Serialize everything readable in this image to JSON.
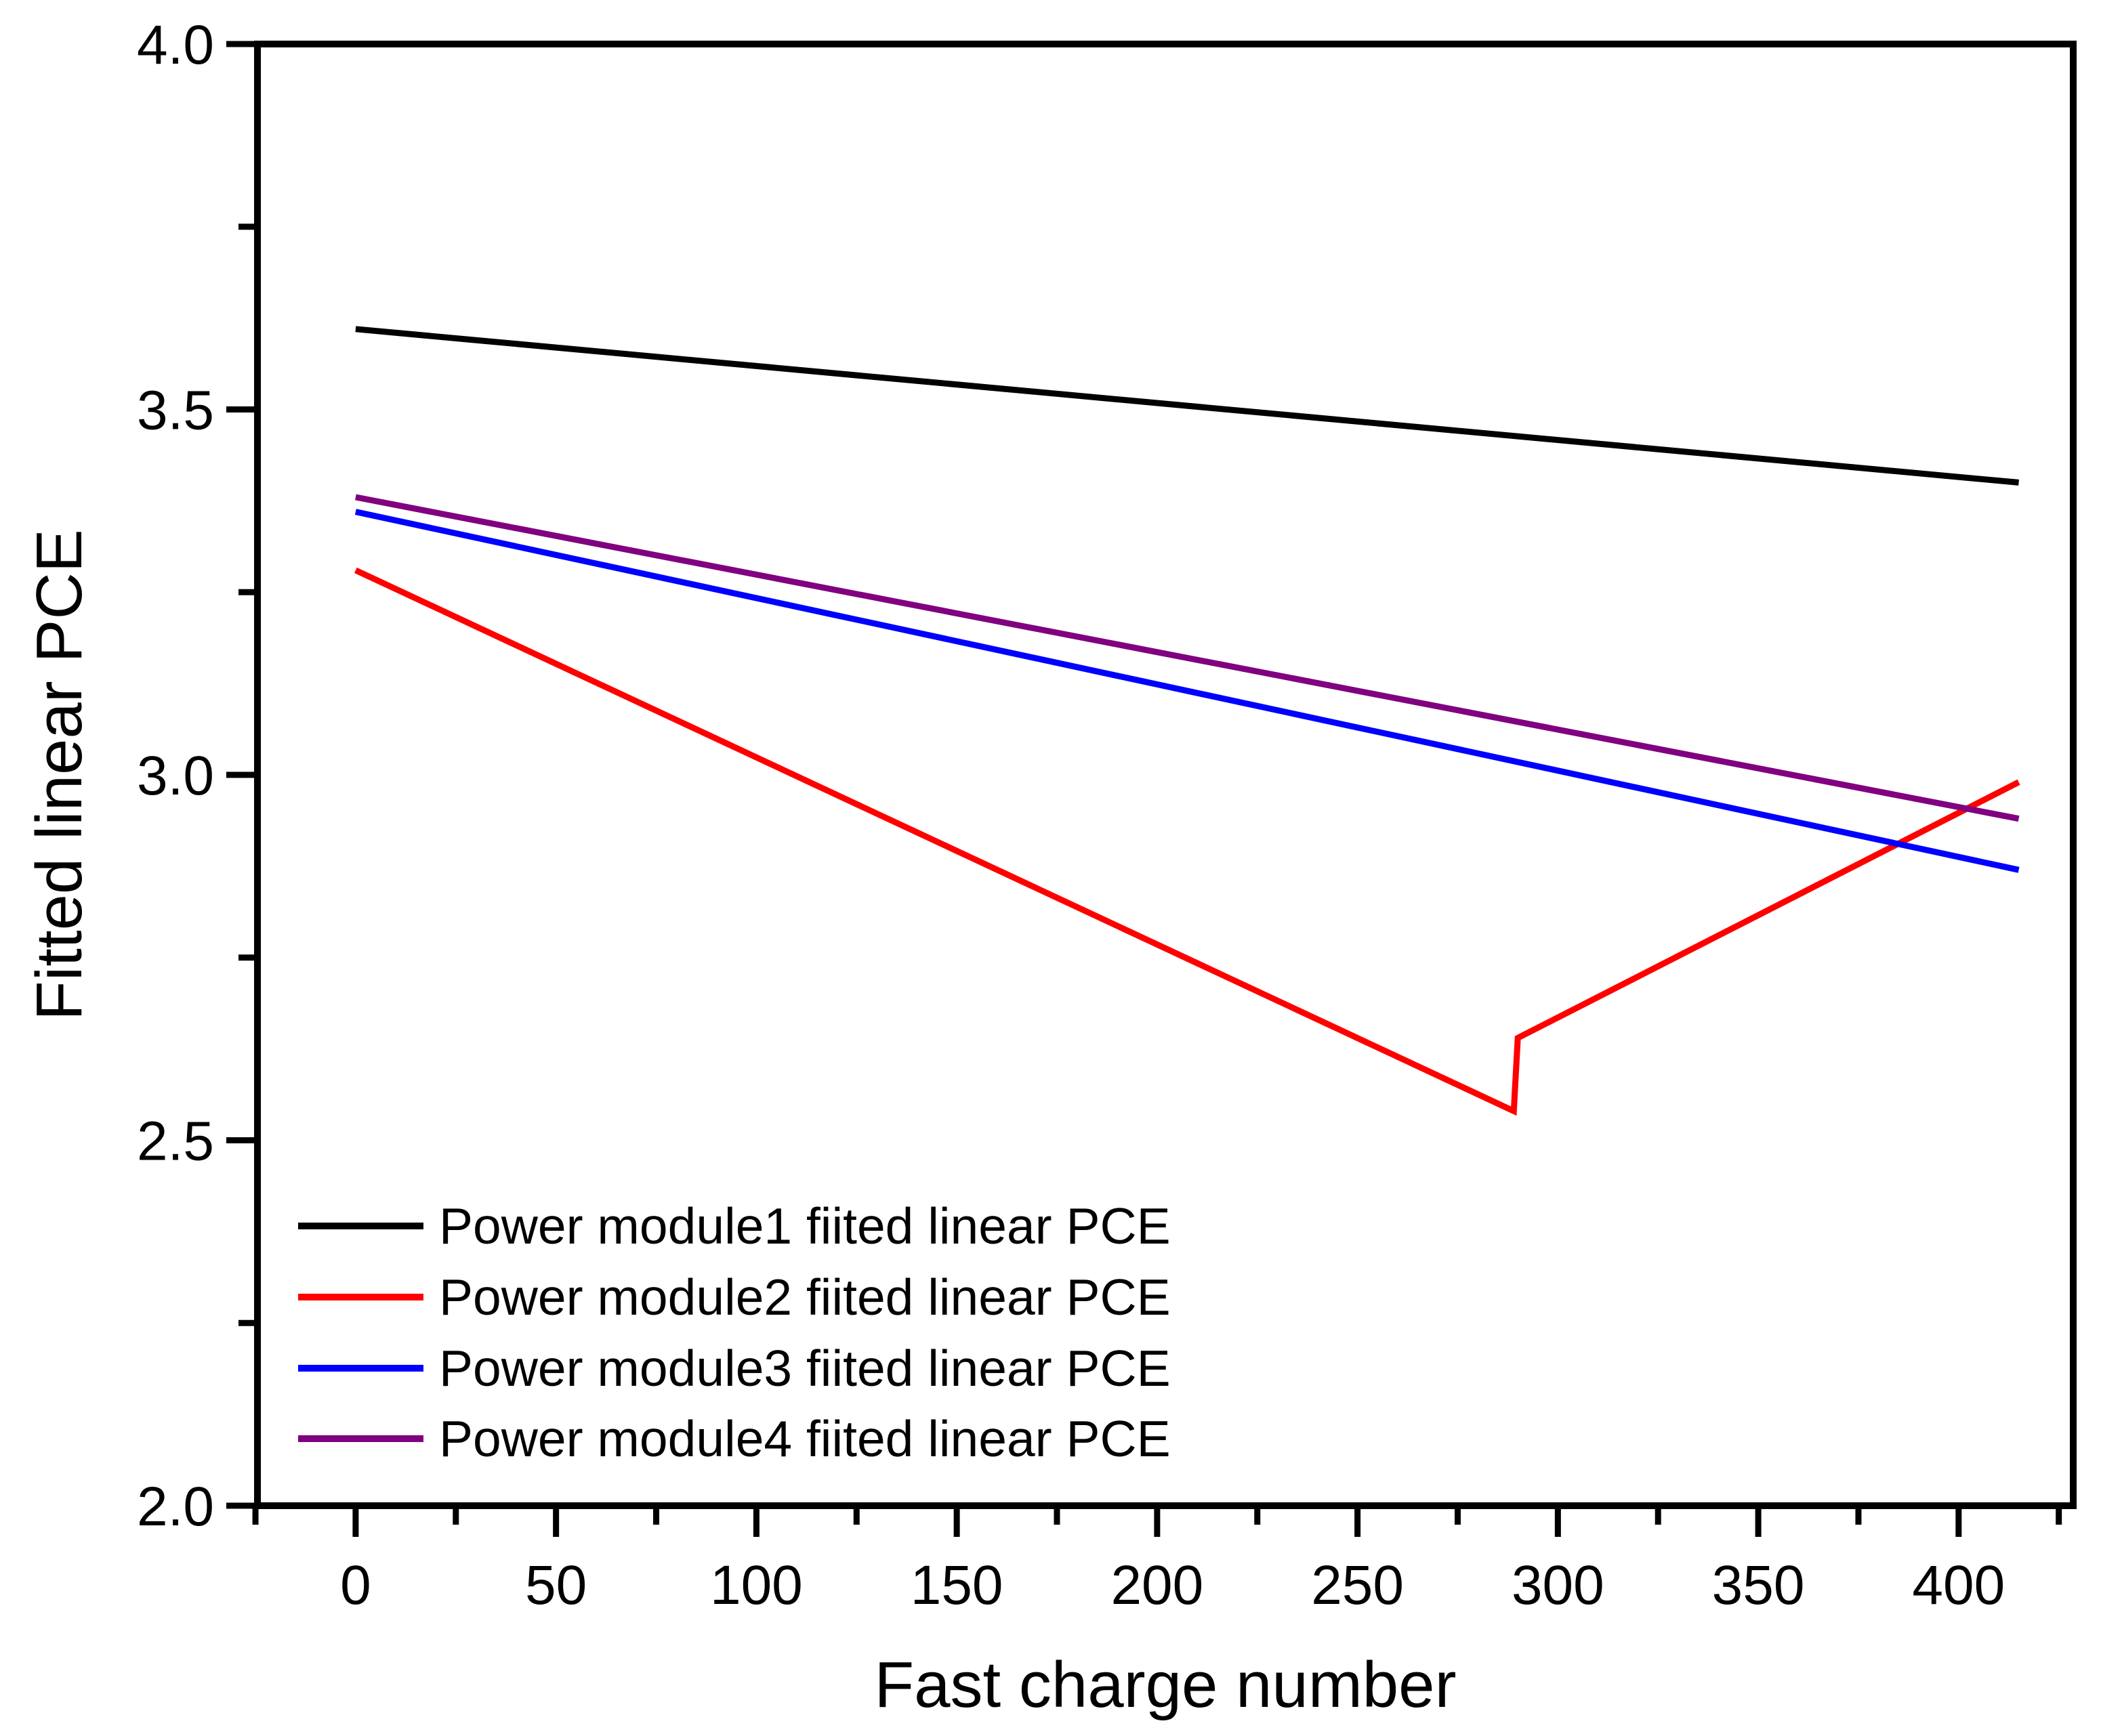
{
  "chart_data": {
    "type": "line",
    "title": "",
    "xlabel": "Fast charge number",
    "ylabel": "Fitted linear PCE",
    "xlim": [
      -24.5,
      428.6
    ],
    "ylim": [
      2.0,
      4.0
    ],
    "x_ticks": [
      0,
      50,
      100,
      150,
      200,
      250,
      300,
      350,
      400
    ],
    "x_tick_labels": [
      "0",
      "50",
      "100",
      "150",
      "200",
      "250",
      "300",
      "350",
      "400"
    ],
    "x_minor_ticks": [
      -25,
      25,
      75,
      125,
      175,
      225,
      275,
      325,
      375,
      425
    ],
    "y_ticks": [
      2.0,
      2.5,
      3.0,
      3.5,
      4.0
    ],
    "y_tick_labels": [
      "2.0",
      "2.5",
      "3.0",
      "3.5",
      "4.0"
    ],
    "y_minor_ticks": [
      2.25,
      2.75,
      3.25,
      3.75
    ],
    "grid": "off",
    "legend_position": "lower-left-inside",
    "axis_color": "#000000",
    "series": [
      {
        "name": "Power module1 fiited linear PCE",
        "color": "#000000",
        "points": [
          [
            0,
            3.61
          ],
          [
            415,
            3.4
          ]
        ]
      },
      {
        "name": "Power module2 fiited linear PCE",
        "color": "#FF0000",
        "points": [
          [
            0,
            3.28
          ],
          [
            289,
            2.54
          ],
          [
            290,
            2.64
          ],
          [
            415,
            2.99
          ]
        ]
      },
      {
        "name": "Power module3 fiited linear PCE",
        "color": "#0000FF",
        "points": [
          [
            0,
            3.36
          ],
          [
            415,
            2.87
          ]
        ]
      },
      {
        "name": "Power module4 fiited linear PCE",
        "color": "#800080",
        "points": [
          [
            0,
            3.38
          ],
          [
            415,
            2.94
          ]
        ]
      }
    ]
  }
}
